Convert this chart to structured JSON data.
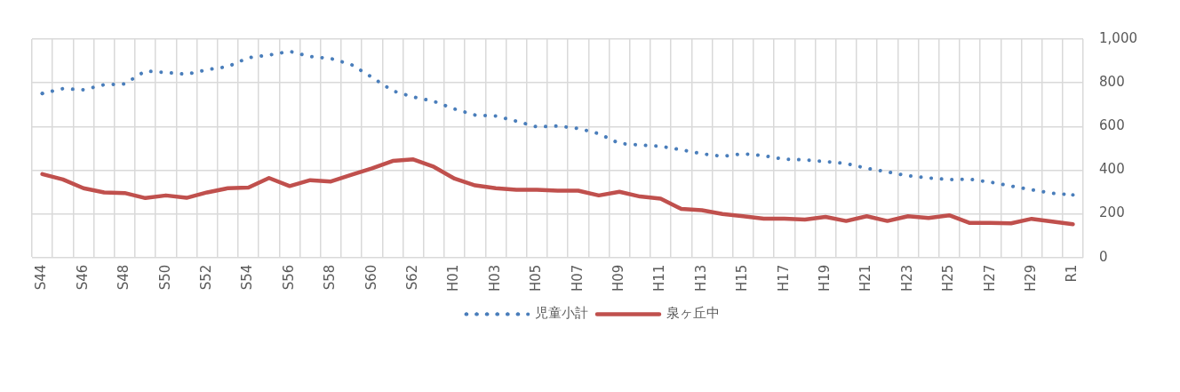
{
  "chart_data": {
    "type": "line",
    "categories": [
      "S44",
      null,
      "S46",
      null,
      "S48",
      null,
      "S50",
      null,
      "S52",
      null,
      "S54",
      null,
      "S56",
      null,
      "S58",
      null,
      "S60",
      null,
      "S62",
      null,
      "H01",
      null,
      "H03",
      null,
      "H05",
      null,
      "H07",
      null,
      "H09",
      null,
      "H11",
      null,
      "H13",
      null,
      "H15",
      null,
      "H17",
      null,
      "H19",
      null,
      "H21",
      null,
      "H23",
      null,
      "H25",
      null,
      "H27",
      null,
      "H29",
      null,
      "R1"
    ],
    "series": [
      {
        "name": "児童小計",
        "color": "#4a7ebb",
        "line_style": "dotted",
        "values": [
          751,
          773,
          768,
          791,
          795,
          854,
          847,
          839,
          860,
          874,
          915,
          927,
          944,
          920,
          911,
          883,
          825,
          763,
          735,
          715,
          680,
          652,
          648,
          624,
          598,
          602,
          591,
          567,
          522,
          515,
          509,
          493,
          475,
          463,
          475,
          466,
          450,
          447,
          439,
          430,
          408,
          392,
          374,
          364,
          357,
          358,
          345,
          327,
          310,
          294,
          287
        ]
      },
      {
        "name": "泉ヶ丘中",
        "color": "#c0504d",
        "line_style": "solid",
        "values": [
          382,
          357,
          317,
          298,
          295,
          272,
          284,
          273,
          298,
          317,
          320,
          364,
          327,
          354,
          348,
          379,
          408,
          442,
          449,
          415,
          361,
          330,
          317,
          310,
          310,
          306,
          306,
          284,
          301,
          279,
          269,
          222,
          216,
          199,
          189,
          178,
          178,
          174,
          186,
          167,
          189,
          167,
          189,
          181,
          193,
          158,
          158,
          156,
          177,
          164,
          152
        ]
      }
    ],
    "ylim": [
      0,
      1000
    ],
    "yticks": [
      0,
      200,
      400,
      600,
      800,
      {
        "value": 1000,
        "label": "1,000"
      }
    ],
    "grid": true,
    "legend": "bottom",
    "marker": "none"
  }
}
